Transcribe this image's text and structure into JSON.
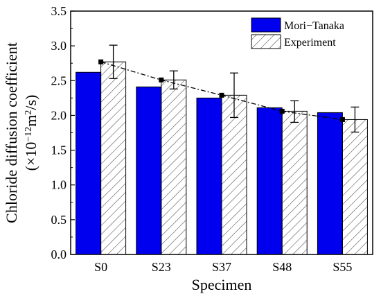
{
  "chart_data": {
    "type": "bar",
    "title": "",
    "xlabel": "Specimen",
    "ylabel_line1": "Chloride diffusion coefficient",
    "ylabel_line2_prefix": "(×10",
    "ylabel_line2_exp": "−12",
    "ylabel_line2_mid": "m",
    "ylabel_line2_exp2": "2",
    "ylabel_line2_suffix": "/s)",
    "ylim": [
      0.0,
      3.5
    ],
    "yticks": [
      "0.0",
      "0.5",
      "1.0",
      "1.5",
      "2.0",
      "2.5",
      "3.0",
      "3.5"
    ],
    "categories": [
      "S0",
      "S23",
      "S37",
      "S48",
      "S55"
    ],
    "legend_position": "top-right",
    "series": [
      {
        "name": "Mori−Tanaka",
        "style": "solid",
        "color": "#0000ee",
        "values": [
          2.62,
          2.41,
          2.25,
          2.11,
          2.04
        ]
      },
      {
        "name": "Experiment",
        "style": "hatched",
        "color": "#ffffff",
        "values": [
          2.77,
          2.51,
          2.29,
          2.06,
          1.94
        ],
        "error_low": [
          2.53,
          2.38,
          1.97,
          1.9,
          1.76
        ],
        "error_high": [
          3.01,
          2.64,
          2.61,
          2.21,
          2.12
        ]
      }
    ],
    "trend_line": {
      "style": "dash-dot",
      "values": [
        2.77,
        2.51,
        2.29,
        2.06,
        1.94
      ]
    }
  }
}
